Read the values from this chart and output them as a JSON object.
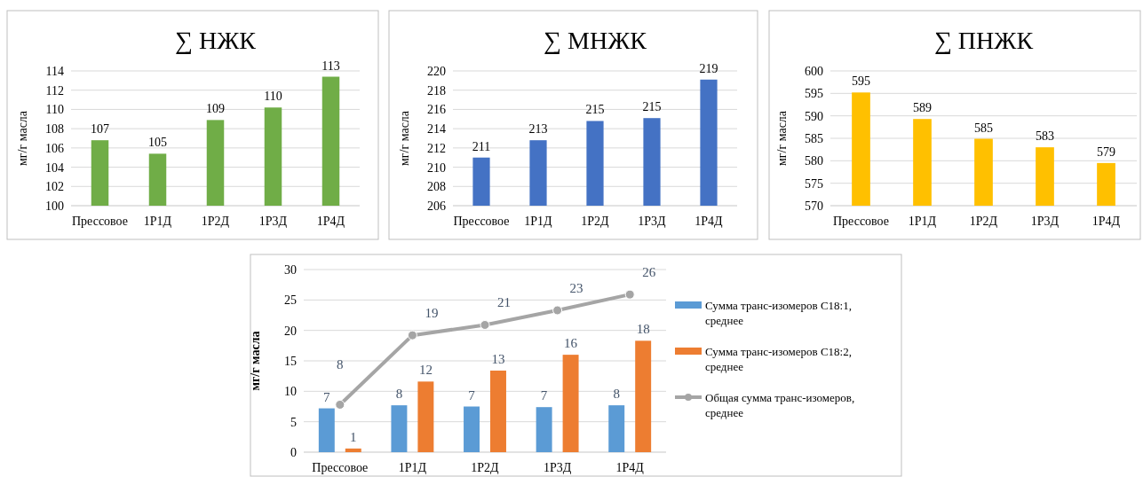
{
  "chart_data": [
    {
      "type": "bar",
      "title": "∑ НЖК",
      "ylabel": "мг/г масла",
      "categories": [
        "Прессовое",
        "1Р1Д",
        "1Р2Д",
        "1Р3Д",
        "1Р4Д"
      ],
      "series": [
        {
          "color": "#70ad47",
          "values": [
            106.8,
            105.4,
            108.9,
            110.2,
            113.4
          ],
          "value_labels": [
            "107",
            "105",
            "109",
            "110",
            "113"
          ]
        }
      ],
      "ylim": [
        100,
        114
      ],
      "yticks": [
        100,
        102,
        104,
        106,
        108,
        110,
        112,
        114
      ],
      "grid": "y",
      "legend": false
    },
    {
      "type": "bar",
      "title": "∑ МНЖК",
      "ylabel": "мг/г масла",
      "categories": [
        "Прессовое",
        "1Р1Д",
        "1Р2Д",
        "1Р3Д",
        "1Р4Д"
      ],
      "series": [
        {
          "color": "#4472c4",
          "values": [
            211.0,
            212.8,
            214.8,
            215.1,
            219.1
          ],
          "value_labels": [
            "211",
            "213",
            "215",
            "215",
            "219"
          ]
        }
      ],
      "ylim": [
        206,
        220
      ],
      "yticks": [
        206,
        208,
        210,
        212,
        214,
        216,
        218,
        220
      ],
      "grid": "y",
      "legend": false
    },
    {
      "type": "bar",
      "title": "∑ ПНЖК",
      "ylabel": "мг/г масла",
      "categories": [
        "Прессовое",
        "1Р1Д",
        "1Р2Д",
        "1Р3Д",
        "1Р4Д"
      ],
      "series": [
        {
          "color": "#ffc000",
          "values": [
            595.2,
            589.3,
            584.9,
            583.0,
            579.5
          ],
          "value_labels": [
            "595",
            "589",
            "585",
            "583",
            "579"
          ]
        }
      ],
      "ylim": [
        570,
        600
      ],
      "yticks": [
        570,
        575,
        580,
        585,
        590,
        595,
        600
      ],
      "grid": "y",
      "legend": false
    },
    {
      "type": "bar",
      "ylabel": "мг/г масла",
      "categories": [
        "Прессовое",
        "1Р1Д",
        "1Р2Д",
        "1Р3Д",
        "1Р4Д"
      ],
      "series": [
        {
          "name": "Сумма транс-изомеров С18:1, среднее",
          "color": "#5b9bd5",
          "values": [
            7.2,
            7.7,
            7.5,
            7.4,
            7.7
          ],
          "value_labels": [
            "7",
            "8",
            "7",
            "7",
            "8"
          ]
        },
        {
          "name": "Сумма транс-изомеров С18:2, среднее",
          "color": "#ed7d31",
          "values": [
            0.6,
            11.6,
            13.4,
            16.0,
            18.3
          ],
          "value_labels": [
            "1",
            "12",
            "13",
            "16",
            "18"
          ]
        },
        {
          "name": "Общая сумма транс-изомеров, среднее",
          "type": "line",
          "color": "#a5a5a5",
          "marker": "circle",
          "values": [
            7.8,
            19.2,
            20.9,
            23.3,
            25.9
          ],
          "value_labels": [
            "8",
            "19",
            "21",
            "23",
            "26"
          ]
        }
      ],
      "ylim": [
        0,
        30
      ],
      "yticks": [
        0,
        5,
        10,
        15,
        20,
        25,
        30
      ],
      "grid": "y",
      "legend": "right"
    }
  ]
}
